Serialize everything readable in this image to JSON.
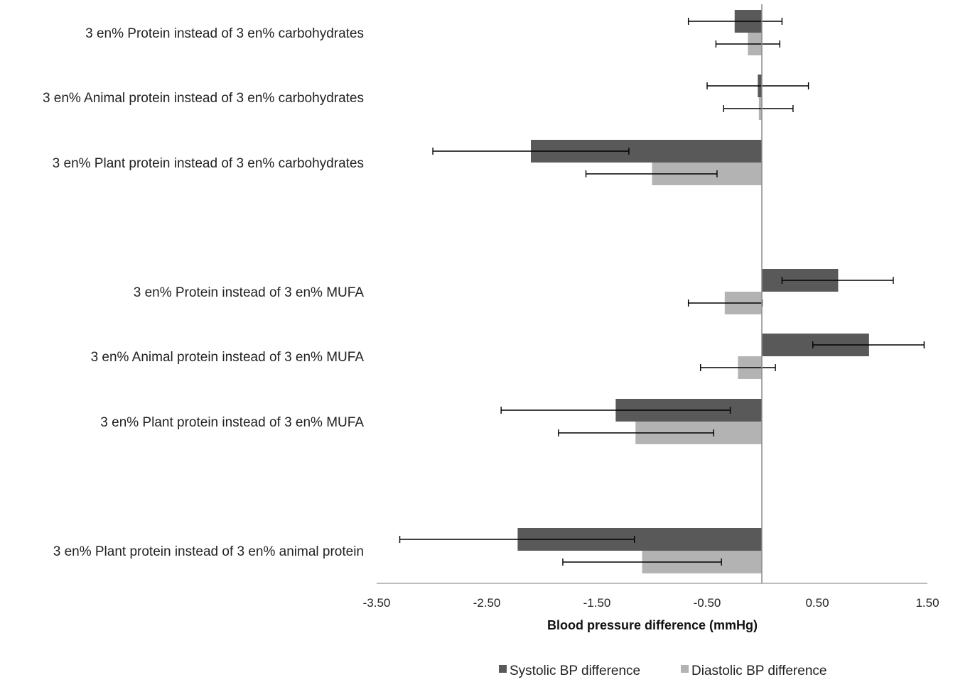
{
  "chart_data": {
    "type": "bar",
    "orientation": "horizontal",
    "categories": [
      "3 en% Protein instead of 3 en% carbohydrates",
      "3 en% Animal protein instead of 3 en% carbohydrates",
      "3 en% Plant protein instead of 3 en% carbohydrates",
      "3 en% Protein instead of 3 en% MUFA",
      "3 en% Animal protein instead of 3 en% MUFA",
      "3 en% Plant protein instead of 3 en% MUFA",
      "3 en% Plant protein instead of 3 en% animal protein"
    ],
    "series": [
      {
        "name": "Systolic BP difference",
        "color": "#595959",
        "values": [
          -0.25,
          -0.04,
          -2.1,
          0.69,
          0.97,
          -1.33,
          -2.22
        ],
        "ci_low": [
          -0.67,
          -0.5,
          -2.99,
          0.18,
          0.46,
          -2.37,
          -3.29
        ],
        "ci_high": [
          0.18,
          0.42,
          -1.21,
          1.19,
          1.47,
          -0.29,
          -1.16
        ]
      },
      {
        "name": "Diastolic BP difference",
        "color": "#b3b3b3",
        "values": [
          -0.13,
          -0.03,
          -1.0,
          -0.34,
          -0.22,
          -1.15,
          -1.09
        ],
        "ci_low": [
          -0.42,
          -0.35,
          -1.6,
          -0.67,
          -0.56,
          -1.85,
          -1.81
        ],
        "ci_high": [
          0.16,
          0.28,
          -0.41,
          0.0,
          0.12,
          -0.44,
          -0.37
        ]
      }
    ],
    "xlabel": "Blood pressure  difference (mmHg)",
    "xticks": [
      "-3.50",
      "-2.50",
      "-1.50",
      "-0.50",
      "0.50",
      "1.50"
    ],
    "xlim": [
      -3.5,
      1.5
    ],
    "grid": false,
    "legend_position": "bottom"
  }
}
